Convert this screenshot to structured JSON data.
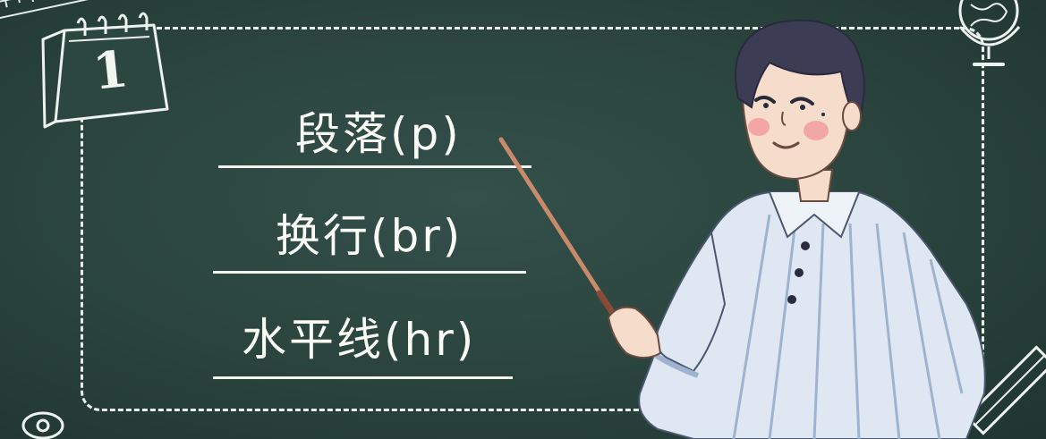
{
  "calendar": {
    "number": "1"
  },
  "lines": [
    {
      "label": "段落(p)"
    },
    {
      "label": "换行(br)"
    },
    {
      "label": "水平线(hr)"
    }
  ],
  "colors": {
    "board": "#2a433d",
    "chalk": "#f4f4ef",
    "shirt": "#dfe8f2",
    "shirt_stripe": "#9fb3d0",
    "hair": "#3c3c55",
    "skin": "#f6dccb",
    "pointer": "#b5745a"
  },
  "icons": [
    "ruler-icon",
    "calendar-icon",
    "globe-icon",
    "pencil-icon",
    "sharpener-icon"
  ]
}
